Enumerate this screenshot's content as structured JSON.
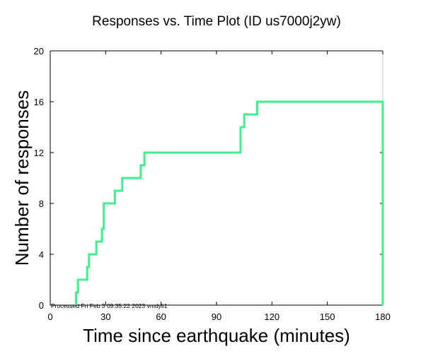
{
  "colors": {
    "series": "#3ef08e",
    "axis": "#000000",
    "background": "#ffffff"
  },
  "chart_data": {
    "type": "line",
    "title": "Responses vs. Time Plot (ID us7000j2yw)",
    "xlabel": "Time since earthquake (minutes)",
    "ylabel": "Number of responses",
    "xlim": [
      0,
      180
    ],
    "ylim": [
      0,
      20
    ],
    "xticks": [
      0,
      30,
      60,
      90,
      120,
      150,
      180
    ],
    "yticks": [
      0,
      4,
      8,
      12,
      16,
      20
    ],
    "grid": false,
    "annotation": "Processed Fri Feb  3 09:35:22 2023 vmdyli1",
    "series": [
      {
        "name": "Responses",
        "step": true,
        "x": [
          14,
          15,
          20,
          21,
          25,
          28,
          29,
          35,
          39,
          49,
          51,
          103,
          105,
          112,
          180,
          180
        ],
        "y": [
          1,
          2,
          3,
          4,
          5,
          6,
          8,
          9,
          10,
          11,
          12,
          14,
          15,
          16,
          16,
          0
        ]
      }
    ]
  }
}
